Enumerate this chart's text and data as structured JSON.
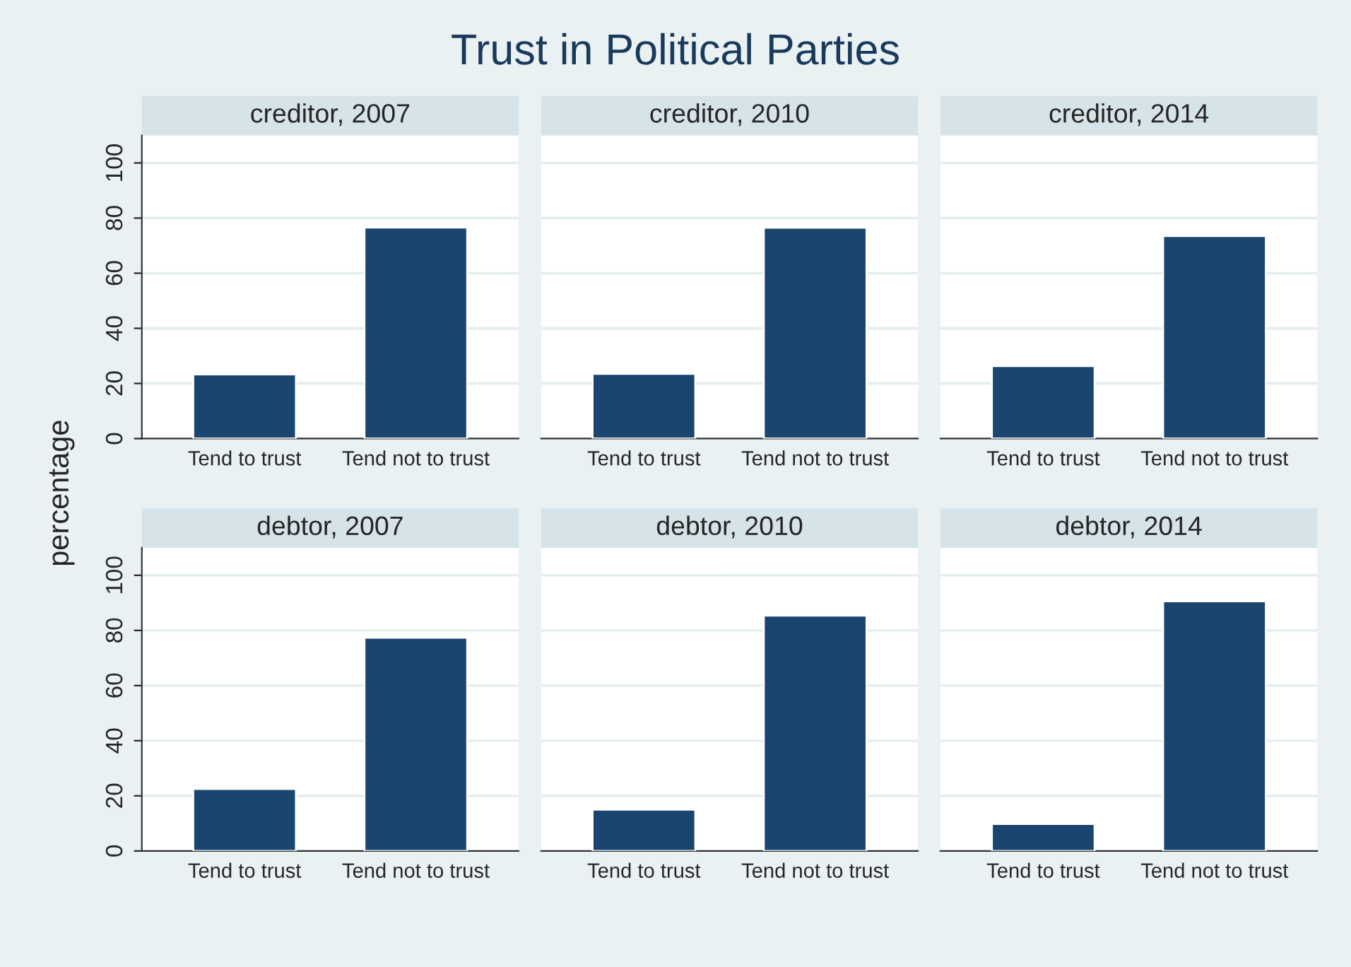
{
  "chart_data": [
    {
      "type": "bar",
      "subtitle": "creditor, 2007",
      "ylabel": "percentage",
      "categories": [
        "Tend to trust",
        "Tend not to trust"
      ],
      "values": [
        23.3,
        76.6
      ],
      "color": "#1a456e",
      "ylim": [
        0,
        110
      ],
      "yticks": [
        0,
        20,
        40,
        60,
        80,
        100
      ],
      "grid": "y"
    },
    {
      "type": "bar",
      "title": "Trust in Political Parties",
      "subtitle": "creditor, 2010",
      "categories": [
        "Tend to trust",
        "Tend not to trust"
      ],
      "values": [
        23.5,
        76.5
      ],
      "color": "#1a456e",
      "ylim": [
        0,
        110
      ],
      "yticks": [
        0,
        20,
        40,
        60,
        80,
        100
      ],
      "grid": "y",
      "tick_labels": "x"
    },
    {
      "type": "bar",
      "subtitle": "creditor, 2014",
      "categories": [
        "Tend to trust",
        "Tend not to trust"
      ],
      "values": [
        26.3,
        73.5
      ],
      "color": "#1a456e",
      "ylim": [
        0,
        110
      ],
      "yticks": [
        0,
        20,
        40,
        60,
        80,
        100
      ],
      "grid": "y",
      "tick_labels": "x"
    },
    {
      "type": "bar",
      "subtitle": "debtor, 2007",
      "categories": [
        "Tend to trust",
        "Tend not to trust"
      ],
      "values": [
        22.5,
        77.4
      ],
      "color": "#1a456e",
      "ylim": [
        0,
        110
      ],
      "yticks": [
        0,
        20,
        40,
        60,
        80,
        100
      ],
      "grid": "y"
    },
    {
      "type": "bar",
      "subtitle": "debtor, 2010",
      "categories": [
        "Tend to trust",
        "Tend not to trust"
      ],
      "values": [
        15.0,
        85.4
      ],
      "color": "#1a456e",
      "ylim": [
        0,
        110
      ],
      "yticks": [
        0,
        20,
        40,
        60,
        80,
        100
      ],
      "grid": "y",
      "tick_labels": "x"
    },
    {
      "type": "bar",
      "subtitle": "debtor, 2014",
      "categories": [
        "Tend to trust",
        "Tend not to trust"
      ],
      "values": [
        9.8,
        90.6
      ],
      "color": "#1a456e",
      "ylim": [
        0,
        110
      ],
      "yticks": [
        0,
        20,
        40,
        60,
        80,
        100
      ],
      "grid": "y",
      "tick_labels": "x"
    }
  ]
}
